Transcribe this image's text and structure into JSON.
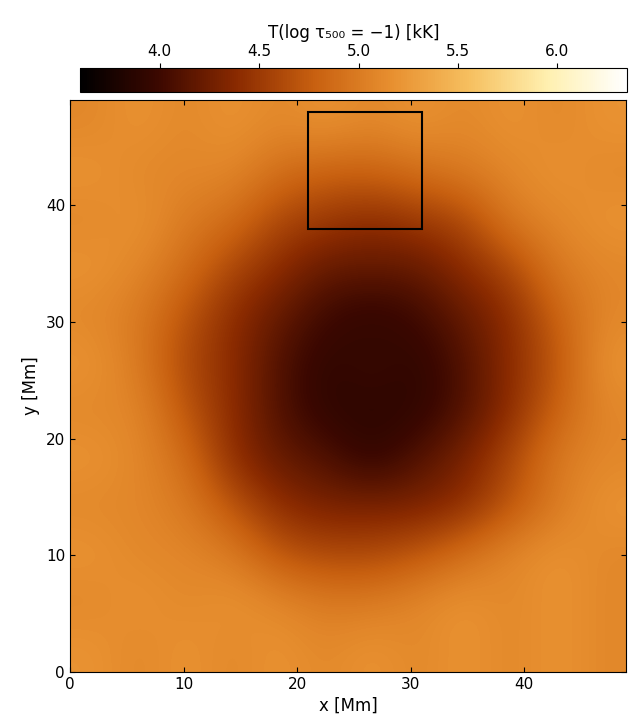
{
  "chart_data": {
    "type": "heatmap",
    "x_label": "x [Mm]",
    "y_label": "y [Mm]",
    "colorbar_label": "T(log τ₅₀₀ = −1) [kK]",
    "xlim": [
      0,
      49
    ],
    "ylim": [
      0,
      49
    ],
    "xticks": [
      0,
      10,
      20,
      30,
      40
    ],
    "yticks": [
      0,
      10,
      20,
      30,
      40
    ],
    "cells": [
      [
        5.2,
        5.1,
        5.2,
        5.1,
        5.2,
        5.1,
        5.2,
        5.1,
        5.2,
        5.1,
        5.2,
        5.1
      ],
      [
        5.1,
        5.2,
        5.1,
        5.2,
        5.1,
        5.0,
        5.0,
        5.1,
        5.2,
        5.1,
        5.2,
        5.1
      ],
      [
        5.2,
        5.1,
        5.1,
        5.0,
        4.7,
        4.6,
        4.6,
        4.7,
        4.9,
        5.1,
        5.2,
        5.1
      ],
      [
        5.1,
        5.1,
        5.0,
        4.7,
        4.4,
        4.3,
        4.3,
        4.3,
        4.4,
        4.7,
        5.0,
        5.2
      ],
      [
        5.2,
        5.1,
        4.9,
        4.4,
        4.2,
        4.1,
        3.9,
        4.1,
        4.3,
        4.6,
        5.0,
        5.1
      ],
      [
        5.1,
        5.1,
        4.7,
        4.4,
        4.1,
        3.9,
        3.9,
        3.9,
        4.1,
        4.4,
        4.8,
        5.1
      ],
      [
        5.2,
        5.0,
        4.6,
        4.4,
        4.1,
        3.9,
        4.0,
        3.9,
        4.1,
        4.4,
        4.7,
        5.2
      ],
      [
        5.1,
        5.0,
        4.7,
        4.4,
        4.2,
        4.0,
        3.9,
        4.0,
        4.2,
        4.4,
        4.8,
        5.1
      ],
      [
        5.2,
        5.1,
        4.9,
        4.6,
        4.4,
        4.2,
        4.2,
        4.2,
        4.4,
        4.6,
        5.0,
        5.1
      ],
      [
        5.1,
        5.2,
        5.0,
        4.9,
        4.6,
        4.5,
        4.4,
        4.5,
        4.6,
        5.0,
        5.1,
        5.2
      ],
      [
        5.2,
        5.1,
        5.1,
        5.1,
        4.9,
        4.8,
        4.8,
        4.9,
        5.0,
        5.1,
        5.2,
        5.1
      ],
      [
        5.1,
        5.2,
        5.1,
        5.2,
        5.1,
        5.2,
        5.1,
        5.2,
        5.1,
        5.2,
        5.1,
        5.2
      ]
    ],
    "color_range": [
      3.6,
      6.35
    ],
    "color_ticks": [
      4.0,
      4.5,
      5.0,
      5.5,
      6.0
    ],
    "box_x": [
      21,
      31
    ],
    "box_y": [
      38,
      48
    ]
  }
}
